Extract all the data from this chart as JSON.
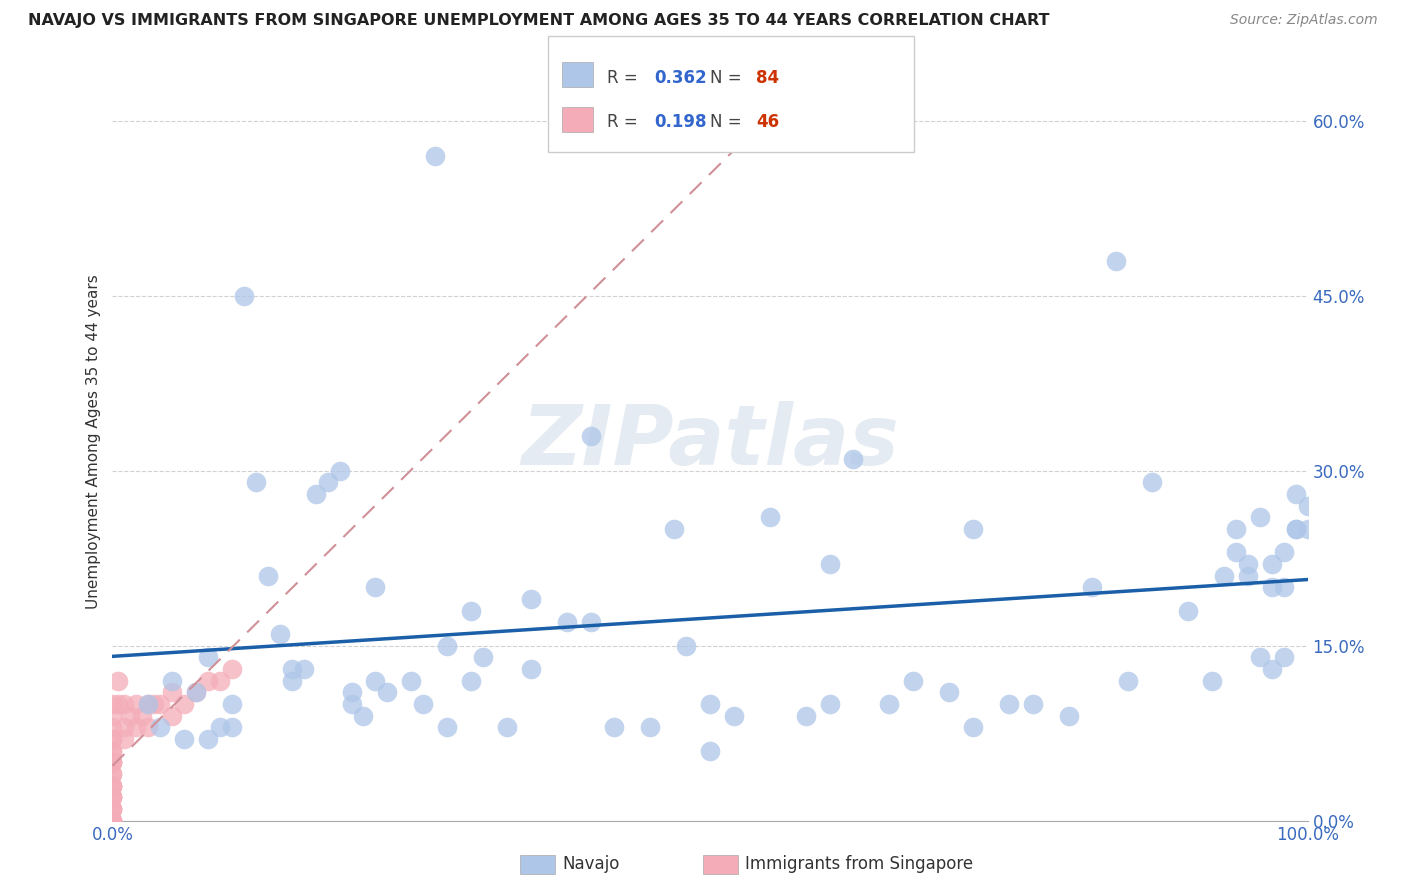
{
  "title": "NAVAJO VS IMMIGRANTS FROM SINGAPORE UNEMPLOYMENT AMONG AGES 35 TO 44 YEARS CORRELATION CHART",
  "source_text": "Source: ZipAtlas.com",
  "ylabel": "Unemployment Among Ages 35 to 44 years",
  "xlim": [
    0,
    1.0
  ],
  "ylim": [
    0,
    0.65
  ],
  "yticks": [
    0.0,
    0.15,
    0.3,
    0.45,
    0.6
  ],
  "ytick_labels": [
    "0.0%",
    "15.0%",
    "30.0%",
    "45.0%",
    "60.0%"
  ],
  "xtick_labels": [
    "0.0%",
    "",
    "",
    "",
    "",
    "100.0%"
  ],
  "xticks": [
    0.0,
    0.2,
    0.4,
    0.6,
    0.8,
    1.0
  ],
  "navajo_color": "#aec6e8",
  "singapore_color": "#f4adb8",
  "navajo_line_color": "#1a5fa8",
  "singapore_line_color": "#e8a0a8",
  "background_color": "#ffffff",
  "watermark_text": "ZIPatlas",
  "legend_R1": "0.362",
  "legend_N1": "84",
  "legend_R2": "0.198",
  "legend_N2": "46",
  "navajo_label": "Navajo",
  "singapore_label": "Immigrants from Singapore",
  "R_color": "#3366cc",
  "N_color": "#cc3300",
  "navajo_x": [
    0.03,
    0.04,
    0.05,
    0.06,
    0.07,
    0.08,
    0.09,
    0.1,
    0.11,
    0.12,
    0.13,
    0.14,
    0.15,
    0.16,
    0.17,
    0.18,
    0.19,
    0.2,
    0.21,
    0.22,
    0.23,
    0.25,
    0.26,
    0.27,
    0.28,
    0.3,
    0.31,
    0.33,
    0.35,
    0.38,
    0.4,
    0.42,
    0.45,
    0.47,
    0.5,
    0.52,
    0.55,
    0.58,
    0.6,
    0.62,
    0.65,
    0.67,
    0.7,
    0.72,
    0.75,
    0.77,
    0.8,
    0.82,
    0.85,
    0.87,
    0.9,
    0.92,
    0.93,
    0.94,
    0.94,
    0.95,
    0.95,
    0.96,
    0.96,
    0.97,
    0.97,
    0.97,
    0.98,
    0.98,
    0.98,
    0.99,
    0.99,
    0.99,
    1.0,
    1.0,
    0.08,
    0.15,
    0.22,
    0.28,
    0.35,
    0.48,
    0.6,
    0.72,
    0.84,
    0.1,
    0.2,
    0.3,
    0.4,
    0.5
  ],
  "navajo_y": [
    0.1,
    0.08,
    0.12,
    0.07,
    0.11,
    0.07,
    0.08,
    0.1,
    0.45,
    0.29,
    0.21,
    0.16,
    0.12,
    0.13,
    0.28,
    0.29,
    0.3,
    0.11,
    0.09,
    0.12,
    0.11,
    0.12,
    0.1,
    0.57,
    0.08,
    0.18,
    0.14,
    0.08,
    0.13,
    0.17,
    0.33,
    0.08,
    0.08,
    0.25,
    0.06,
    0.09,
    0.26,
    0.09,
    0.1,
    0.31,
    0.1,
    0.12,
    0.11,
    0.08,
    0.1,
    0.1,
    0.09,
    0.2,
    0.12,
    0.29,
    0.18,
    0.12,
    0.21,
    0.23,
    0.25,
    0.21,
    0.22,
    0.14,
    0.26,
    0.13,
    0.2,
    0.22,
    0.14,
    0.2,
    0.23,
    0.25,
    0.28,
    0.25,
    0.27,
    0.25,
    0.14,
    0.13,
    0.2,
    0.15,
    0.19,
    0.15,
    0.22,
    0.25,
    0.48,
    0.08,
    0.1,
    0.12,
    0.17,
    0.1
  ],
  "singapore_x": [
    0.0,
    0.0,
    0.0,
    0.0,
    0.0,
    0.0,
    0.0,
    0.0,
    0.0,
    0.0,
    0.0,
    0.0,
    0.0,
    0.0,
    0.0,
    0.0,
    0.0,
    0.0,
    0.0,
    0.0,
    0.0,
    0.0,
    0.0,
    0.0,
    0.0,
    0.0,
    0.005,
    0.005,
    0.01,
    0.01,
    0.01,
    0.015,
    0.02,
    0.02,
    0.025,
    0.03,
    0.03,
    0.035,
    0.04,
    0.05,
    0.05,
    0.06,
    0.07,
    0.08,
    0.09,
    0.1
  ],
  "singapore_y": [
    0.0,
    0.0,
    0.0,
    0.0,
    0.0,
    0.01,
    0.01,
    0.01,
    0.02,
    0.02,
    0.02,
    0.03,
    0.03,
    0.03,
    0.04,
    0.04,
    0.05,
    0.05,
    0.05,
    0.06,
    0.06,
    0.07,
    0.07,
    0.08,
    0.09,
    0.1,
    0.1,
    0.12,
    0.07,
    0.08,
    0.1,
    0.09,
    0.08,
    0.1,
    0.09,
    0.08,
    0.1,
    0.1,
    0.1,
    0.09,
    0.11,
    0.1,
    0.11,
    0.12,
    0.12,
    0.13
  ]
}
